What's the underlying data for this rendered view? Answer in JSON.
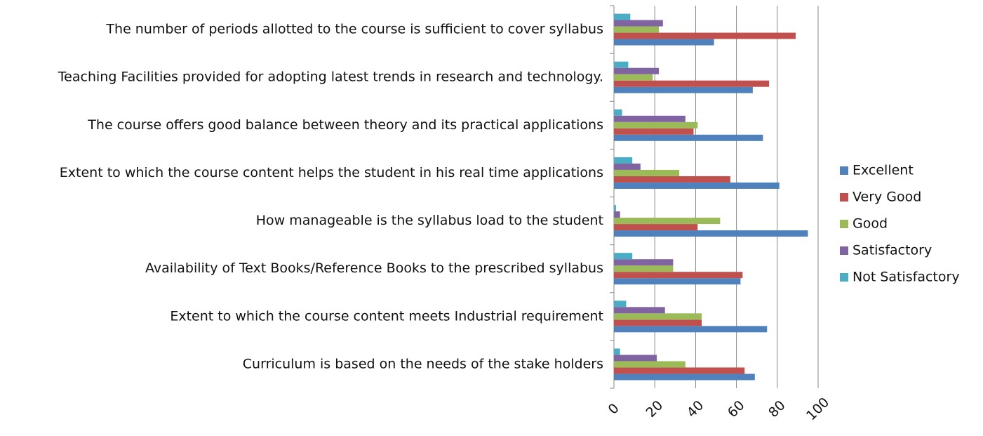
{
  "chart_data": {
    "type": "hbar",
    "categories": [
      "Curriculum is based on the needs of the stake holders",
      "Extent to which the course content meets Industrial requirement",
      "Availability of Text Books/Reference Books to the prescribed syllabus",
      "How manageable is the syllabus load to the student",
      "Extent to which the course content helps the student in his real time applications",
      "The course offers good balance between theory and its practical applications",
      "Teaching Facilities provided for adopting latest trends in research and technology.",
      "The number of periods allotted to the course is sufficient to cover syllabus"
    ],
    "series": [
      {
        "name": "Excellent",
        "color": "#4f81bd",
        "values": [
          69,
          75,
          62,
          95,
          81,
          73,
          68,
          49
        ]
      },
      {
        "name": "Very Good",
        "color": "#c0504d",
        "values": [
          64,
          43,
          63,
          41,
          57,
          39,
          76,
          89
        ]
      },
      {
        "name": "Good",
        "color": "#9bbb59",
        "values": [
          35,
          43,
          29,
          52,
          32,
          41,
          19,
          22
        ]
      },
      {
        "name": "Satisfactory",
        "color": "#8064a2",
        "values": [
          21,
          25,
          29,
          3,
          13,
          35,
          22,
          24
        ]
      },
      {
        "name": "Not Satisfactory",
        "color": "#4bacc6",
        "values": [
          3,
          6,
          9,
          1,
          9,
          4,
          7,
          8
        ]
      }
    ],
    "xlim": [
      0,
      100
    ],
    "xticks": [
      0,
      20,
      40,
      60,
      80,
      100
    ],
    "grid": true,
    "legend": "right"
  }
}
